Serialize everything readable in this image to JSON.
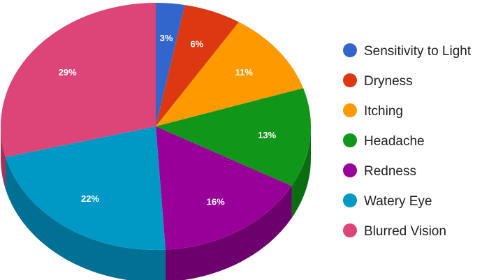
{
  "chart_data": {
    "type": "pie",
    "style": "3d",
    "legend_position": "right",
    "series": [
      {
        "label": "Sensitivity to Light",
        "value": 3,
        "display": "3%",
        "color": "#3366cc",
        "side_color": "#25479a"
      },
      {
        "label": "Dryness",
        "value": 6,
        "display": "6%",
        "color": "#dc3912",
        "side_color": "#a32a0d"
      },
      {
        "label": "Itching",
        "value": 11,
        "display": "11%",
        "color": "#ff9900",
        "side_color": "#c07300"
      },
      {
        "label": "Headache",
        "value": 13,
        "display": "13%",
        "color": "#109618",
        "side_color": "#0b6d11"
      },
      {
        "label": "Redness",
        "value": 16,
        "display": "16%",
        "color": "#990099",
        "side_color": "#6e006e"
      },
      {
        "label": "Watery Eye",
        "value": 22,
        "display": "22%",
        "color": "#0099c6",
        "side_color": "#007095"
      },
      {
        "label": "Blurred Vision",
        "value": 29,
        "display": "29%",
        "color": "#dd4477",
        "side_color": "#a6325a"
      }
    ]
  }
}
